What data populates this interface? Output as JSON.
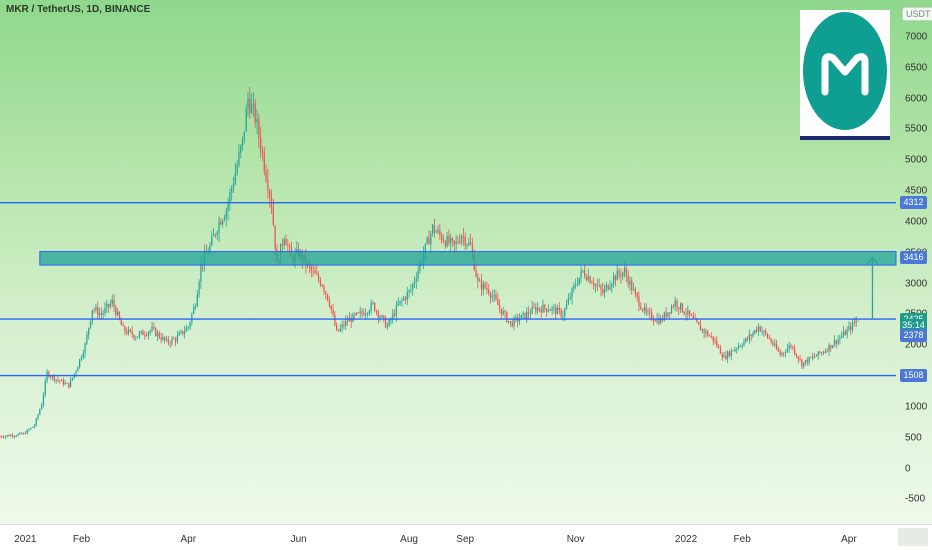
{
  "header": {
    "symbol_title": "MKR / TetherUS, 1D, BINANCE"
  },
  "price_axis": {
    "currency_label": "USDT"
  },
  "colors": {
    "up_candle": "#26a69a",
    "down_candle": "#ef5350",
    "support_line": "#2962ff",
    "zone_fill": "#26a69a",
    "arrow": "#26a69a",
    "badge_blue": "#4b78d8",
    "badge_teal": "#1e9b8a"
  },
  "logo": {
    "icon": "maker-m-logo-icon"
  },
  "badges": [
    {
      "label": "4312",
      "value": 4312,
      "color": "#4b78d8"
    },
    {
      "label": "3416",
      "value": 3416,
      "color": "#4b78d8"
    },
    {
      "label": "2425",
      "value": 2425,
      "color": "#1e9b8a"
    },
    {
      "label": "35:14",
      "value": 2320,
      "color": "#1e9b8a"
    },
    {
      "label": "2378",
      "value": 2160,
      "color": "#4b78d8"
    },
    {
      "label": "1508",
      "value": 1508,
      "color": "#4b78d8"
    }
  ],
  "chart_data": {
    "type": "candlestick",
    "title": "MKR / TetherUS, 1D, BINANCE",
    "y_unit": "USDT",
    "ylim": [
      -900,
      7600
    ],
    "y_ticks": [
      7000,
      6500,
      6000,
      5500,
      5000,
      4500,
      4000,
      3500,
      3000,
      2500,
      2000,
      1500,
      1000,
      500,
      0,
      -500
    ],
    "y_tick_labels": [
      "7000",
      "6500",
      "6000",
      "5500",
      "5000",
      "4500",
      "4000",
      "3500",
      "3000",
      "2500",
      "2000",
      "1500",
      "1000",
      "500",
      "0",
      "-500"
    ],
    "x_range": [
      "2020-12-18",
      "2022-04-27"
    ],
    "x_ticks": [
      "2021-01-01",
      "2021-02-01",
      "2021-04-01",
      "2021-06-01",
      "2021-08-01",
      "2021-09-01",
      "2021-11-01",
      "2022-01-01",
      "2022-02-01",
      "2022-04-01"
    ],
    "x_tick_labels": [
      "2021",
      "Feb",
      "Apr",
      "Jun",
      "Aug",
      "Sep",
      "Nov",
      "2022",
      "Feb",
      "Apr"
    ],
    "price_path": [
      [
        "2020-12-18",
        520
      ],
      [
        "2020-12-31",
        560
      ],
      [
        "2021-01-06",
        700
      ],
      [
        "2021-01-10",
        1050
      ],
      [
        "2021-01-13",
        1550
      ],
      [
        "2021-01-18",
        1450
      ],
      [
        "2021-01-25",
        1350
      ],
      [
        "2021-01-29",
        1600
      ],
      [
        "2021-02-03",
        2000
      ],
      [
        "2021-02-07",
        2600
      ],
      [
        "2021-02-12",
        2500
      ],
      [
        "2021-02-18",
        2700
      ],
      [
        "2021-02-24",
        2250
      ],
      [
        "2021-03-03",
        2150
      ],
      [
        "2021-03-12",
        2250
      ],
      [
        "2021-03-20",
        2050
      ],
      [
        "2021-03-25",
        2100
      ],
      [
        "2021-04-01",
        2300
      ],
      [
        "2021-04-05",
        2700
      ],
      [
        "2021-04-08",
        3300
      ],
      [
        "2021-04-13",
        3600
      ],
      [
        "2021-04-18",
        4000
      ],
      [
        "2021-04-22",
        4200
      ],
      [
        "2021-04-27",
        4800
      ],
      [
        "2021-05-01",
        5300
      ],
      [
        "2021-05-04",
        6000
      ],
      [
        "2021-05-08",
        5700
      ],
      [
        "2021-05-12",
        5100
      ],
      [
        "2021-05-17",
        4300
      ],
      [
        "2021-05-20",
        3300
      ],
      [
        "2021-05-24",
        3800
      ],
      [
        "2021-05-28",
        3400
      ],
      [
        "2021-06-01",
        3500
      ],
      [
        "2021-06-08",
        3200
      ],
      [
        "2021-06-14",
        3000
      ],
      [
        "2021-06-18",
        2700
      ],
      [
        "2021-06-22",
        2200
      ],
      [
        "2021-06-28",
        2400
      ],
      [
        "2021-07-05",
        2500
      ],
      [
        "2021-07-12",
        2650
      ],
      [
        "2021-07-20",
        2300
      ],
      [
        "2021-07-26",
        2650
      ],
      [
        "2021-08-02",
        2900
      ],
      [
        "2021-08-08",
        3400
      ],
      [
        "2021-08-14",
        3900
      ],
      [
        "2021-08-21",
        3700
      ],
      [
        "2021-08-26",
        3600
      ],
      [
        "2021-08-30",
        3800
      ],
      [
        "2021-09-04",
        3600
      ],
      [
        "2021-09-08",
        3000
      ],
      [
        "2021-09-14",
        2900
      ],
      [
        "2021-09-20",
        2600
      ],
      [
        "2021-09-26",
        2350
      ],
      [
        "2021-10-02",
        2450
      ],
      [
        "2021-10-10",
        2600
      ],
      [
        "2021-10-18",
        2600
      ],
      [
        "2021-10-25",
        2500
      ],
      [
        "2021-11-01",
        3000
      ],
      [
        "2021-11-05",
        3200
      ],
      [
        "2021-11-10",
        3050
      ],
      [
        "2021-11-16",
        2850
      ],
      [
        "2021-11-22",
        3100
      ],
      [
        "2021-11-28",
        3200
      ],
      [
        "2021-12-04",
        2800
      ],
      [
        "2021-12-10",
        2500
      ],
      [
        "2021-12-18",
        2400
      ],
      [
        "2021-12-26",
        2700
      ],
      [
        "2022-01-02",
        2500
      ],
      [
        "2022-01-08",
        2300
      ],
      [
        "2022-01-16",
        2100
      ],
      [
        "2022-01-22",
        1800
      ],
      [
        "2022-01-28",
        1950
      ],
      [
        "2022-02-04",
        2100
      ],
      [
        "2022-02-10",
        2300
      ],
      [
        "2022-02-16",
        2100
      ],
      [
        "2022-02-22",
        1850
      ],
      [
        "2022-02-28",
        2000
      ],
      [
        "2022-03-06",
        1700
      ],
      [
        "2022-03-12",
        1800
      ],
      [
        "2022-03-18",
        1900
      ],
      [
        "2022-03-24",
        2050
      ],
      [
        "2022-03-30",
        2200
      ],
      [
        "2022-04-06",
        2425
      ]
    ],
    "horizontal_lines": [
      {
        "price": 4312,
        "label": "4312"
      },
      {
        "price": 2425,
        "label": "2425"
      },
      {
        "price": 1508,
        "label": "1508"
      }
    ],
    "zones": [
      {
        "from": 3300,
        "to": 3520,
        "start": "2021-01-09",
        "label": "3416"
      }
    ],
    "arrows": [
      {
        "date": "2022-04-14",
        "from_price": 2425,
        "to_price": 3416
      }
    ]
  }
}
